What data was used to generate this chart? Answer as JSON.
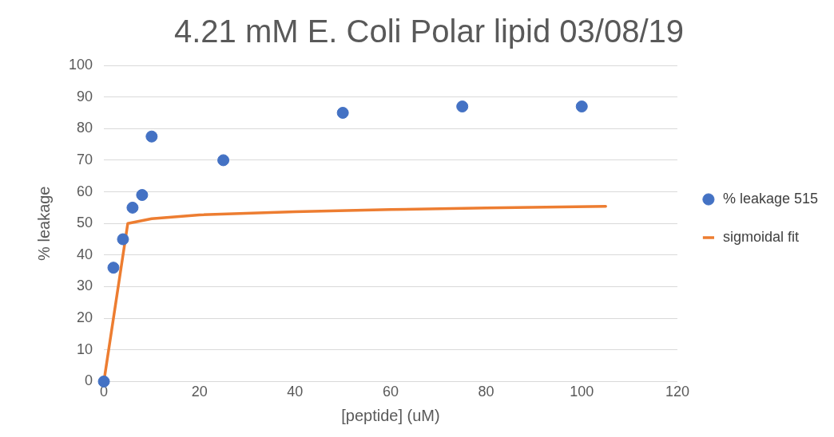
{
  "chart_data": {
    "type": "scatter",
    "title": "4.21 mM E. Coli Polar lipid 03/08/19",
    "xlabel": "[peptide] (uM)",
    "ylabel": "% leakage",
    "series": [
      {
        "name": "% leakage 515",
        "color": "#4472c4",
        "x": [
          0,
          2,
          4,
          6,
          8,
          10,
          25,
          50,
          75,
          100
        ],
        "values": [
          0,
          36,
          45,
          55,
          59,
          77.5,
          70,
          85,
          87,
          87
        ],
        "marker": "circle"
      },
      {
        "name": "sigmoidal fit",
        "type": "line",
        "color": "#ed7d31",
        "x": [
          0,
          5,
          10,
          20,
          40,
          60,
          80,
          105
        ],
        "values": [
          0,
          50,
          51.5,
          52.7,
          53.7,
          54.4,
          54.9,
          55.4
        ],
        "marker": "none",
        "line_style": "solid"
      }
    ],
    "xlim": [
      0,
      120
    ],
    "xticks": [
      0,
      20,
      40,
      60,
      80,
      100,
      120
    ],
    "ylim": [
      0,
      100
    ],
    "yticks": [
      0,
      10,
      20,
      30,
      40,
      50,
      60,
      70,
      80,
      90,
      100
    ],
    "grid": "y",
    "legend": "right"
  }
}
